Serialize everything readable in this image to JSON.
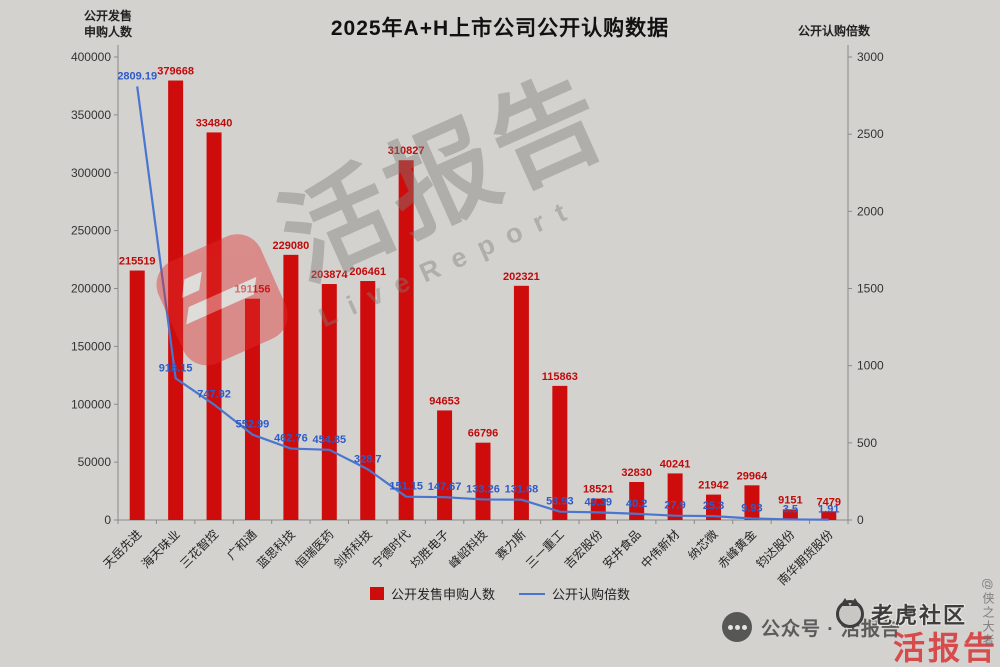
{
  "title": "2025年A+H上市公司公开认购数据",
  "left_axis_header": {
    "line1": "公开发售",
    "line2": "申购人数"
  },
  "right_axis_header": "公开认购倍数",
  "legend": {
    "bar": "公开发售申购人数",
    "line": "公开认购倍数"
  },
  "watermarks": {
    "center_text": "活报告",
    "center_subtext": "LiveReport",
    "bottom_center": "公众号 · 活报告",
    "bottom_right": "老虎社区",
    "corner_stamp": "活报告",
    "right_edge": "@侠之大者"
  },
  "colors": {
    "bar": "#cf0c0c",
    "bar_label": "#bf0a0a",
    "line": "#4a76d0",
    "line_label": "#2d5bc8",
    "axis": "#8a8a8a",
    "tick_text": "#333333",
    "background": "#d4d2cf"
  },
  "chart_data": {
    "type": "bar",
    "title": "2025年A+H上市公司公开认购数据",
    "categories": [
      "天岳先进",
      "海天味业",
      "三花智控",
      "广和通",
      "蓝思科技",
      "恒瑞医药",
      "剑桥科技",
      "宁德时代",
      "均胜电子",
      "峰岹科技",
      "赛力斯",
      "三一重工",
      "吉宏股份",
      "安井食品",
      "中伟新材",
      "纳芯微",
      "赤峰黄金",
      "钧达股份",
      "南华期货股份"
    ],
    "series": [
      {
        "name": "公开发售申购人数",
        "chart_type": "bar",
        "axis": "left",
        "values": [
          215519,
          379668,
          334840,
          191156,
          229080,
          203874,
          206461,
          310827,
          94653,
          66796,
          202321,
          115863,
          18521,
          32830,
          40241,
          21942,
          29964,
          9151,
          7479
        ]
      },
      {
        "name": "公开认购倍数",
        "chart_type": "line",
        "axis": "right",
        "values": [
          2809.19,
          918.15,
          747.92,
          552.99,
          462.76,
          454.85,
          328.7,
          151.15,
          147.67,
          133.26,
          131.68,
          53.93,
          49.39,
          40.2,
          27.9,
          25.3,
          9.93,
          3.5,
          1.91
        ]
      }
    ],
    "left_axis": {
      "label": "公开发售申购人数",
      "min": 0,
      "max": 400000,
      "ticks": [
        0,
        50000,
        100000,
        150000,
        200000,
        250000,
        300000,
        350000,
        400000
      ]
    },
    "right_axis": {
      "label": "公开认购倍数",
      "min": 0,
      "max": 3000,
      "ticks": [
        0,
        500,
        1000,
        1500,
        2000,
        2500,
        3000
      ]
    },
    "grid": false,
    "legend_position": "bottom",
    "xlabel": "",
    "ylabel": "公开发售申购人数"
  }
}
